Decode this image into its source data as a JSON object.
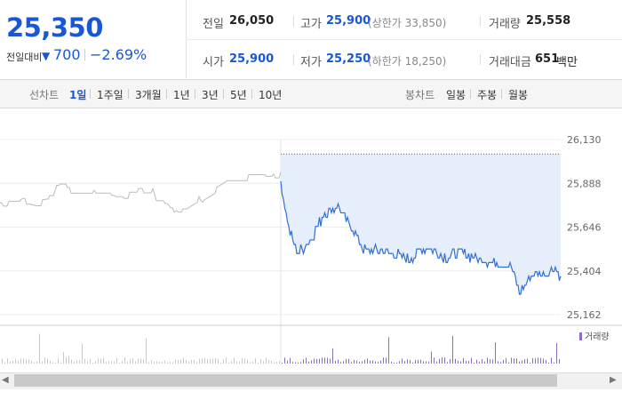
{
  "price": {
    "current": "25,350",
    "change_label": "전일대비",
    "change_arrow": "▼",
    "change_value": "700",
    "change_percent": "−2.69%",
    "color": "#1957d6"
  },
  "stats": [
    {
      "label": "전일",
      "value": "26,050"
    },
    {
      "label": "고가",
      "value": "25,900",
      "sub": "(상한가 33,850)"
    },
    {
      "label": "거래량",
      "value": "25,558"
    },
    {
      "label": "시가",
      "value": "25,900"
    },
    {
      "label": "저가",
      "value": "25,250",
      "sub": "(하한가 18,250)"
    },
    {
      "label": "거래대금",
      "value": "651",
      "unit": "백만"
    }
  ],
  "range_bar": {
    "line_label": "선차트",
    "line_ranges": [
      "1일",
      "1주일",
      "3개월",
      "1년",
      "3년",
      "5년",
      "10년"
    ],
    "active_range": "1일",
    "candle_label": "봉차트",
    "candle_ranges": [
      "일봉",
      "주봉",
      "월봉"
    ]
  },
  "chart_data": {
    "type": "line",
    "y_ticks": [
      "26,130",
      "25,888",
      "25,646",
      "25,404",
      "25,162"
    ],
    "ylim": [
      25162,
      26130
    ],
    "reference_line": 26050,
    "series": [
      {
        "color": "#bbbbbb"
      },
      {
        "color": "#2f6fd6",
        "fill": "#e6eefb"
      }
    ],
    "volume_label": "거래량",
    "volume_color": "#8a6fc0"
  },
  "scrollbar": {
    "left_icon": "◀",
    "right_icon": "▶"
  }
}
